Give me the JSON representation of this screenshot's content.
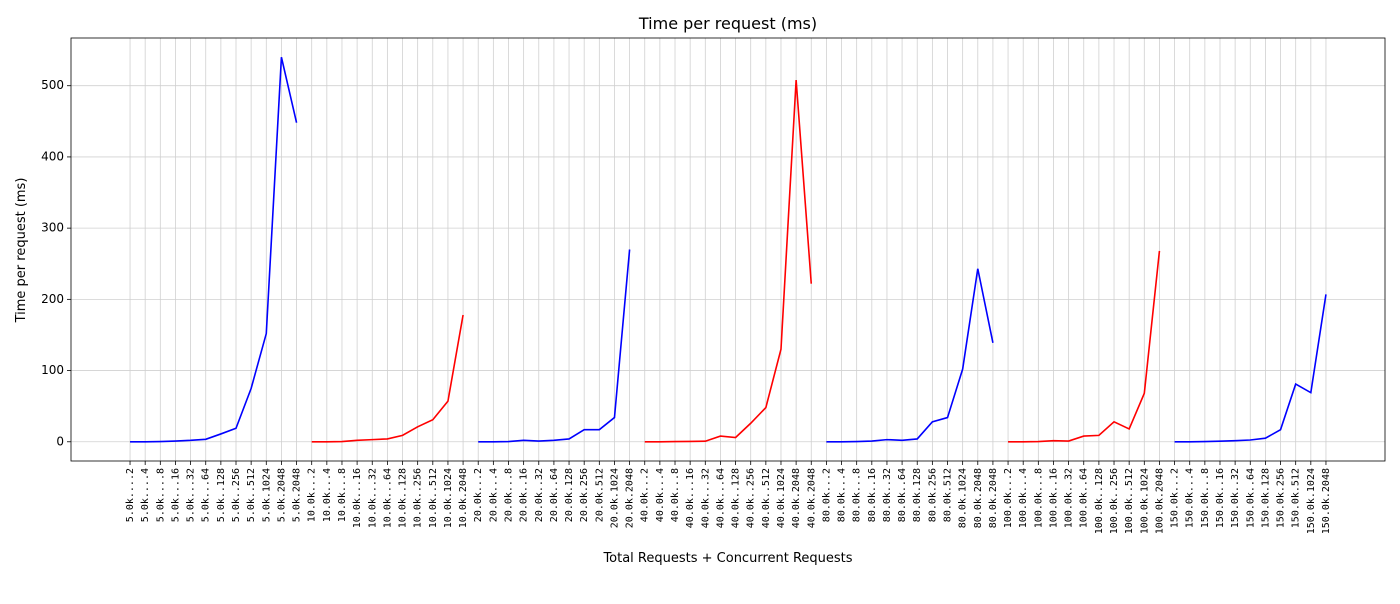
{
  "chart_data": {
    "type": "line",
    "title": "Time per request (ms)",
    "x_label": "Total Requests + Concurrent Requests",
    "y_label": "Time per request (ms)",
    "categories": [
      "5.0k....2",
      "5.0k....4",
      "5.0k....8",
      "5.0k...16",
      "5.0k...32",
      "5.0k...64",
      "5.0k..128",
      "5.0k..256",
      "5.0k..512",
      "5.0k.1024",
      "5.0k.2048",
      "5.0k.2048",
      "10.0k...2",
      "10.0k...4",
      "10.0k...8",
      "10.0k...16",
      "10.0k...32",
      "10.0k...64",
      "10.0k..128",
      "10.0k..256",
      "10.0k..512",
      "10.0k.1024",
      "10.0k.2048",
      "20.0k...2",
      "20.0k...4",
      "20.0k...8",
      "20.0k..16",
      "20.0k..32",
      "20.0k..64",
      "20.0k.128",
      "20.0k.256",
      "20.0k.512",
      "20.0k.1024",
      "20.0k.2048",
      "40.0k...2",
      "40.0k...4",
      "40.0k...8",
      "40.0k...16",
      "40.0k...32",
      "40.0k...64",
      "40.0k..128",
      "40.0k..256",
      "40.0k..512",
      "40.0k.1024",
      "40.0k.2048",
      "40.0k.2048",
      "80.0k...2",
      "80.0k...4",
      "80.0k...8",
      "80.0k..16",
      "80.0k..32",
      "80.0k..64",
      "80.0k.128",
      "80.0k.256",
      "80.0k.512",
      "80.0k.1024",
      "80.0k.2048",
      "80.0k.2048",
      "100.0k...2",
      "100.0k...4",
      "100.0k...8",
      "100.0k..16",
      "100.0k..32",
      "100.0k..64",
      "100.0k..128",
      "100.0k..256",
      "100.0k..512",
      "100.0k.1024",
      "100.0k.2048",
      "150.0k...2",
      "150.0k...4",
      "150.0k...8",
      "150.0k..16",
      "150.0k..32",
      "150.0k..64",
      "150.0k.128",
      "150.0k.256",
      "150.0k.512",
      "150.0k.1024",
      "150.0k.2048"
    ],
    "series": [
      {
        "color": "#0000ff",
        "values": [
          0,
          0,
          0.3,
          1,
          2,
          3.5,
          11,
          19,
          75,
          152,
          540,
          448,
          null,
          null,
          null,
          null,
          null,
          null,
          null,
          null,
          null,
          null,
          null,
          0,
          0,
          0.3,
          2,
          1,
          2,
          4,
          17,
          17,
          34,
          270,
          null,
          null,
          null,
          null,
          null,
          null,
          null,
          null,
          null,
          null,
          null,
          null,
          0,
          0,
          0.3,
          1,
          3,
          2,
          4,
          28,
          34,
          102,
          243,
          139,
          null,
          null,
          null,
          null,
          null,
          null,
          null,
          null,
          null,
          null,
          null,
          0,
          0,
          0.3,
          0.8,
          1.5,
          2.5,
          5,
          17,
          81,
          69,
          207
        ]
      },
      {
        "color": "#ff0000",
        "values": [
          null,
          null,
          null,
          null,
          null,
          null,
          null,
          null,
          null,
          null,
          null,
          null,
          0,
          0,
          0.3,
          2,
          3,
          4,
          9,
          21,
          31,
          57,
          178,
          null,
          null,
          null,
          null,
          null,
          null,
          null,
          null,
          null,
          null,
          null,
          0,
          0,
          0.3,
          0.5,
          0.8,
          8,
          6,
          26,
          48,
          130,
          508,
          222,
          null,
          null,
          null,
          null,
          null,
          null,
          null,
          null,
          null,
          null,
          null,
          null,
          0,
          0,
          0.3,
          1.5,
          1,
          8,
          9,
          28,
          18,
          68,
          268,
          null,
          null,
          null,
          null,
          null,
          null,
          null,
          null,
          null,
          null,
          null
        ]
      }
    ],
    "ylim": [
      -27,
      567
    ],
    "yticks": [
      0,
      100,
      200,
      300,
      400,
      500
    ],
    "grid": true
  }
}
